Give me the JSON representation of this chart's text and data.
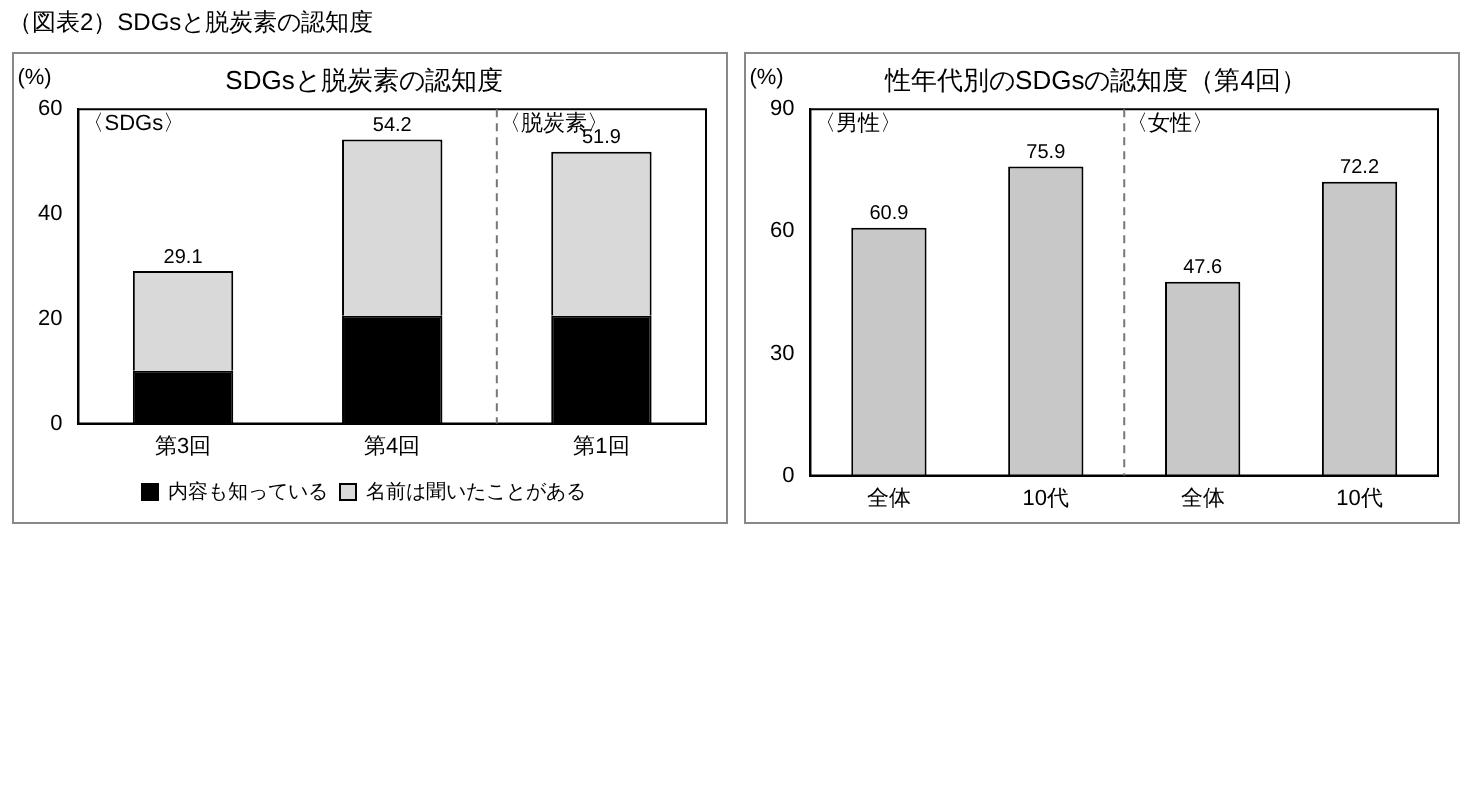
{
  "chart_data": [
    {
      "type": "bar",
      "title": "SDGsと脱炭素の認知度",
      "ylabel": "(%)",
      "annotations": [
        "（図表2）SDGsと脱炭素の認知度",
        "〈SDGs〉",
        "〈脱炭素〉"
      ],
      "categories": [
        "第3回",
        "第4回",
        "第1回"
      ],
      "stacked": true,
      "series": [
        {
          "name": "内容も知っている",
          "color": "#000000",
          "values": [
            10.1,
            20.6,
            20.6
          ]
        },
        {
          "name": "名前は聞いたことがある",
          "color": "#d9d9d9",
          "values": [
            19.0,
            33.6,
            31.3
          ]
        }
      ],
      "totals": [
        "29.1",
        "54.2",
        "51.9"
      ],
      "ylim": [
        0,
        60
      ],
      "yticks": [
        0,
        20,
        40,
        60
      ],
      "grid": false,
      "legend": "bottom"
    },
    {
      "type": "bar",
      "title": "性年代別のSDGsの認知度（第4回）",
      "ylabel": "(%)",
      "annotations": [
        "〈男性〉",
        "〈女性〉"
      ],
      "categories": [
        "全体",
        "10代",
        "全体",
        "10代"
      ],
      "series": [
        {
          "color": "#c8c8c8",
          "values": [
            60.9,
            75.9,
            47.6,
            72.2
          ]
        }
      ],
      "data_labels": true,
      "ylim": [
        0,
        90
      ],
      "yticks": [
        0,
        30,
        60,
        90
      ],
      "grid": false,
      "legend": false
    }
  ]
}
